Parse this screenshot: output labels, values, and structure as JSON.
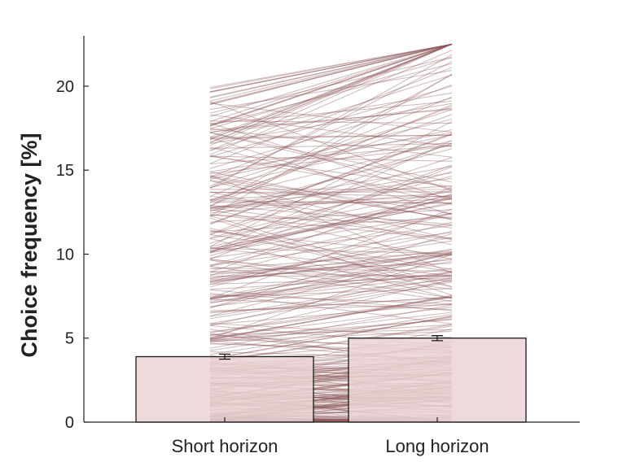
{
  "chart_data": {
    "type": "bar",
    "categories": [
      "Short horizon",
      "Long horizon"
    ],
    "values": [
      3.9,
      5.0
    ],
    "errors": [
      0.15,
      0.15
    ],
    "ylabel": "Choice frequency [%]",
    "xlabel": "",
    "ylim": [
      0,
      23
    ],
    "yticks": [
      "0",
      "5",
      "10",
      "15",
      "20"
    ],
    "grid": false,
    "legend": "none",
    "individual_lines": {
      "description_hidden": true,
      "count": 360,
      "note_values": "paired per-participant choice frequencies (short vs long horizon)"
    },
    "colors": {
      "bar_fill": "#ebd3d3",
      "bar_edge": "#1a1a1a",
      "line": "#8c5458",
      "axis": "#222222"
    }
  }
}
